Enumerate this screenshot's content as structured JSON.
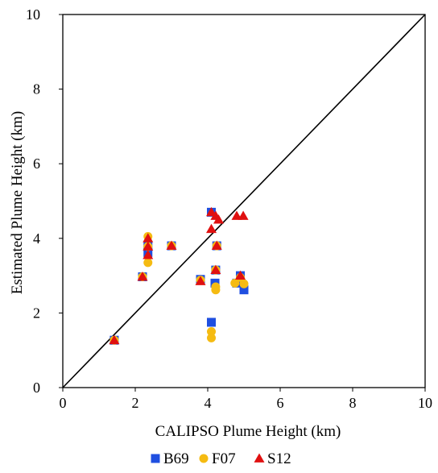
{
  "chart_data": {
    "type": "scatter",
    "title": "",
    "xlabel": "CALIPSO Plume Height (km)",
    "ylabel": "Estimated Plume Height (km)",
    "xlim": [
      0,
      10
    ],
    "ylim": [
      0,
      10
    ],
    "x_ticks": [
      "0",
      "2",
      "4",
      "6",
      "8",
      "10"
    ],
    "y_ticks": [
      "0",
      "2",
      "4",
      "6",
      "8",
      "10"
    ],
    "grid": false,
    "legend_position": "bottom",
    "reference_line": {
      "name": "1:1 line",
      "x": [
        0,
        10
      ],
      "y": [
        0,
        10
      ],
      "color": "#000000"
    },
    "series": [
      {
        "name": "B69",
        "marker": "square",
        "color": "#1f4fe0",
        "points": [
          [
            1.42,
            1.27
          ],
          [
            2.2,
            2.97
          ],
          [
            2.35,
            3.62
          ],
          [
            2.35,
            3.78
          ],
          [
            3.0,
            3.8
          ],
          [
            3.8,
            2.9
          ],
          [
            4.1,
            4.7
          ],
          [
            4.1,
            1.75
          ],
          [
            4.2,
            2.8
          ],
          [
            4.25,
            3.8
          ],
          [
            4.22,
            3.15
          ],
          [
            4.8,
            2.8
          ],
          [
            4.9,
            3.0
          ],
          [
            5.0,
            2.62
          ]
        ]
      },
      {
        "name": "F07",
        "marker": "circle",
        "color": "#f5bb12",
        "points": [
          [
            1.42,
            1.27
          ],
          [
            2.2,
            2.97
          ],
          [
            2.35,
            4.05
          ],
          [
            2.35,
            3.35
          ],
          [
            2.35,
            3.78
          ],
          [
            3.0,
            3.8
          ],
          [
            3.8,
            2.88
          ],
          [
            4.1,
            1.5
          ],
          [
            4.1,
            1.33
          ],
          [
            4.22,
            2.7
          ],
          [
            4.22,
            2.62
          ],
          [
            4.25,
            3.8
          ],
          [
            4.22,
            3.15
          ],
          [
            4.75,
            2.8
          ],
          [
            5.0,
            2.78
          ],
          [
            4.9,
            2.95
          ]
        ]
      },
      {
        "name": "S12",
        "marker": "triangle",
        "color": "#e01010",
        "points": [
          [
            1.42,
            1.27
          ],
          [
            2.2,
            2.97
          ],
          [
            2.35,
            4.0
          ],
          [
            2.35,
            3.55
          ],
          [
            2.35,
            3.78
          ],
          [
            3.0,
            3.8
          ],
          [
            3.8,
            2.85
          ],
          [
            4.1,
            4.7
          ],
          [
            4.1,
            4.25
          ],
          [
            4.22,
            4.6
          ],
          [
            4.3,
            4.5
          ],
          [
            4.25,
            3.8
          ],
          [
            4.22,
            3.15
          ],
          [
            4.8,
            4.6
          ],
          [
            4.98,
            4.6
          ],
          [
            4.9,
            3.0
          ]
        ]
      }
    ]
  }
}
